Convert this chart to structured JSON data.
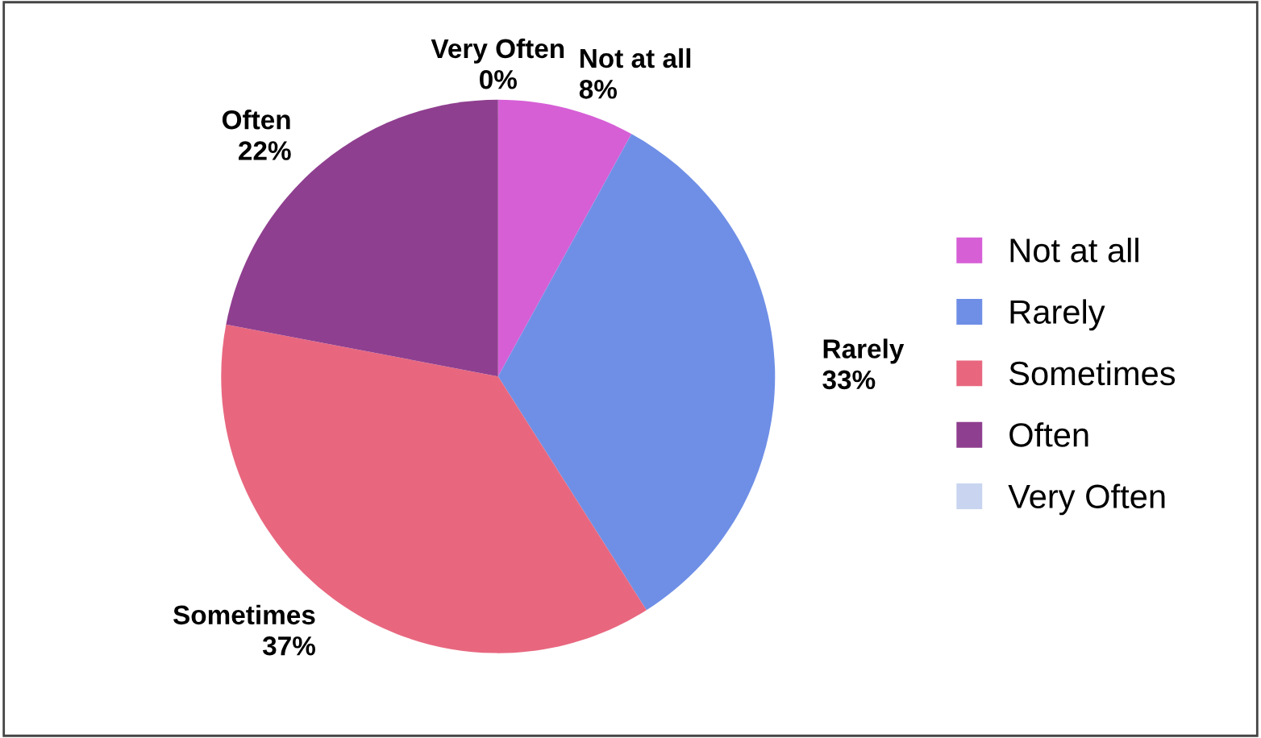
{
  "chart_data": {
    "type": "pie",
    "categories": [
      "Not at all",
      "Rarely",
      "Sometimes",
      "Often",
      "Very Often"
    ],
    "values": [
      8,
      33,
      37,
      22,
      0
    ],
    "colors": [
      "#d65fd6",
      "#6f8fe6",
      "#e8677f",
      "#8f3f8f",
      "#c9d5f0"
    ],
    "value_labels": [
      "8%",
      "33%",
      "37%",
      "22%",
      "0%"
    ],
    "legend": "right"
  }
}
